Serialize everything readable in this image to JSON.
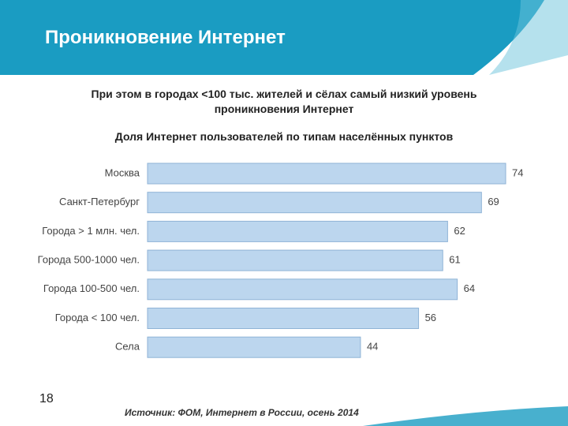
{
  "slide": {
    "title": "Проникновение Интернет",
    "page_number": "18",
    "source": "Источник: ФОМ, Интернет в России, осень 2014"
  },
  "chart_data": {
    "type": "hbar",
    "subtitle": "При этом в городах <100 тыс. жителей и сёлах самый низкий уровень проникновения Интернет",
    "title": "Доля Интернет пользователей по типам населённых пунктов",
    "categories": [
      "Москва",
      "Санкт-Петербург",
      "Города > 1 млн. чел.",
      "Города 500-1000 чел.",
      "Города 100-500 чел.",
      "Города < 100 чел.",
      "Села"
    ],
    "values": [
      74,
      69,
      62,
      61,
      64,
      56,
      44
    ],
    "color": "#bcd6ee"
  }
}
